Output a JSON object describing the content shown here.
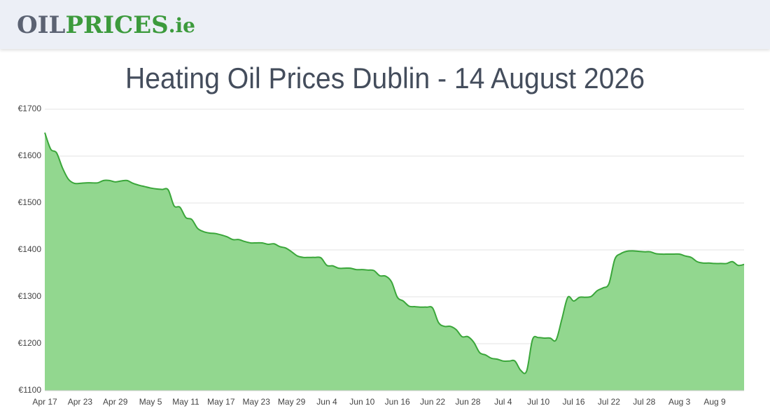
{
  "header": {
    "logo": {
      "first": "OIL",
      "second": "PRICES",
      "suffix": ".ie"
    }
  },
  "chart_data": {
    "type": "area",
    "title": "Heating Oil Prices Dublin - 14 August 2026",
    "line_color": "#3aa63a",
    "fill_color": "#92d78f",
    "grid": true,
    "ylim": [
      1100,
      1700
    ],
    "yticks": [
      {
        "value": 1100,
        "label": "€1100"
      },
      {
        "value": 1200,
        "label": "€1200"
      },
      {
        "value": 1300,
        "label": "€1300"
      },
      {
        "value": 1400,
        "label": "€1400"
      },
      {
        "value": 1500,
        "label": "€1500"
      },
      {
        "value": 1600,
        "label": "€1600"
      },
      {
        "value": 1700,
        "label": "€1700"
      }
    ],
    "categories": [
      "Apr 17",
      null,
      null,
      null,
      null,
      null,
      "Apr 23",
      null,
      null,
      null,
      null,
      null,
      "Apr 29",
      null,
      null,
      null,
      null,
      null,
      "May 5",
      null,
      null,
      null,
      null,
      null,
      "May 11",
      null,
      null,
      null,
      null,
      null,
      "May 17",
      null,
      null,
      null,
      null,
      null,
      "May 23",
      null,
      null,
      null,
      null,
      null,
      "May 29",
      null,
      null,
      null,
      null,
      null,
      "Jun 4",
      null,
      null,
      null,
      null,
      null,
      "Jun 10",
      null,
      null,
      null,
      null,
      null,
      "Jun 16",
      null,
      null,
      null,
      null,
      null,
      "Jun 22",
      null,
      null,
      null,
      null,
      null,
      "Jun 28",
      null,
      null,
      null,
      null,
      null,
      "Jul 4",
      null,
      null,
      null,
      null,
      null,
      "Jul 10",
      null,
      null,
      null,
      null,
      null,
      "Jul 16",
      null,
      null,
      null,
      null,
      null,
      "Jul 22",
      null,
      null,
      null,
      null,
      null,
      "Jul 28",
      null,
      null,
      null,
      null,
      null,
      "Aug 3",
      null,
      null,
      null,
      null,
      null,
      "Aug 9",
      null,
      null,
      null,
      null,
      null
    ],
    "values": [
      1650,
      1615,
      1607,
      1575,
      1551,
      1542,
      1542,
      1543,
      1543,
      1543,
      1548,
      1548,
      1545,
      1547,
      1548,
      1542,
      1538,
      1535,
      1532,
      1530,
      1529,
      1528,
      1494,
      1491,
      1469,
      1465,
      1446,
      1439,
      1436,
      1435,
      1432,
      1428,
      1422,
      1422,
      1418,
      1415,
      1415,
      1415,
      1412,
      1413,
      1407,
      1404,
      1396,
      1387,
      1384,
      1384,
      1384,
      1383,
      1367,
      1366,
      1361,
      1361,
      1361,
      1358,
      1358,
      1357,
      1356,
      1345,
      1344,
      1332,
      1299,
      1291,
      1280,
      1279,
      1278,
      1278,
      1276,
      1245,
      1237,
      1237,
      1230,
      1215,
      1215,
      1203,
      1181,
      1176,
      1169,
      1167,
      1163,
      1163,
      1163,
      1143,
      1142,
      1209,
      1213,
      1212,
      1212,
      1208,
      1253,
      1299,
      1291,
      1299,
      1299,
      1301,
      1313,
      1319,
      1328,
      1380,
      1392,
      1397,
      1398,
      1397,
      1396,
      1396,
      1392,
      1391,
      1391,
      1391,
      1391,
      1387,
      1384,
      1375,
      1372,
      1372,
      1371,
      1371,
      1371,
      1375,
      1367,
      1369
    ]
  }
}
